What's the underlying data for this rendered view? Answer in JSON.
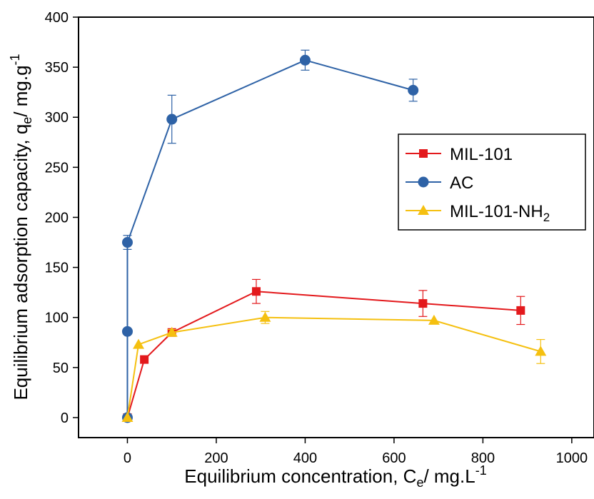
{
  "chart_data": {
    "type": "line",
    "xlabel": {
      "main": "Equilibrium concentration, C",
      "sub": "e",
      "tail": "/ mg.L",
      "sup": "-1"
    },
    "ylabel": {
      "main": "Equilibrium adsorption capacity, q",
      "sub": "e",
      "tail": "/ mg.g",
      "sup": "-1"
    },
    "xlim": [
      -110,
      1050
    ],
    "ylim": [
      -20,
      400
    ],
    "xticks": [
      0,
      200,
      400,
      600,
      800,
      1000
    ],
    "yticks": [
      0,
      50,
      100,
      150,
      200,
      250,
      300,
      350,
      400
    ],
    "legend_position": "right",
    "series": [
      {
        "name": "MIL-101",
        "legend": {
          "main": "MIL-101",
          "sub": ""
        },
        "color": "#e3191c",
        "marker": "square",
        "x": [
          0,
          38,
          100,
          290,
          665,
          885
        ],
        "y": [
          0,
          58,
          85,
          126,
          114,
          107
        ],
        "err": [
          0,
          0,
          3,
          12,
          13,
          14
        ]
      },
      {
        "name": "AC",
        "legend": {
          "main": "AC",
          "sub": ""
        },
        "color": "#2e62a6",
        "marker": "circle",
        "x": [
          0,
          0,
          0,
          100,
          400,
          643
        ],
        "y": [
          0,
          86,
          175,
          298,
          357,
          327
        ],
        "err": [
          0,
          0,
          7,
          24,
          10,
          11
        ]
      },
      {
        "name": "MIL-101-NH2",
        "legend": {
          "main": "MIL-101-NH",
          "sub": "2"
        },
        "color": "#f5c010",
        "marker": "triangle",
        "x": [
          0,
          25,
          100,
          310,
          690,
          930
        ],
        "y": [
          0,
          73,
          85,
          100,
          97,
          66
        ],
        "err": [
          0,
          0,
          3,
          6,
          0,
          12
        ]
      }
    ]
  }
}
